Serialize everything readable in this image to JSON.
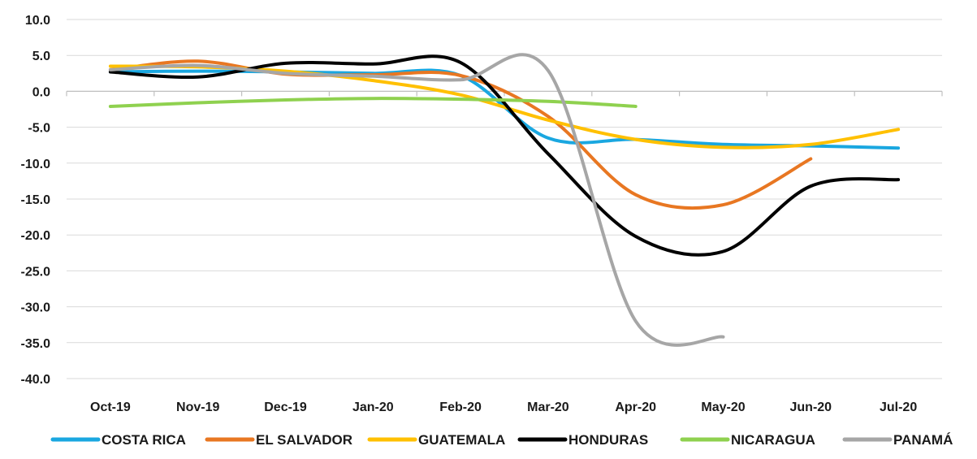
{
  "chart_data": {
    "type": "line",
    "title": "",
    "xlabel": "",
    "ylabel": "",
    "categories": [
      "Oct-19",
      "Nov-19",
      "Dec-19",
      "Jan-20",
      "Feb-20",
      "Mar-20",
      "Apr-20",
      "May-20",
      "Jun-20",
      "Jul-20"
    ],
    "ylim": [
      -40,
      10
    ],
    "y_ticks": [
      "10.0",
      "5.0",
      "0.0",
      "-5.0",
      "-10.0",
      "-15.0",
      "-20.0",
      "-25.0",
      "-30.0",
      "-35.0",
      "-40.0"
    ],
    "grid": true,
    "smooth": true,
    "legend_position": "bottom",
    "series": [
      {
        "name": "COSTA RICA",
        "color": "#1aa7e0",
        "values": [
          2.7,
          2.8,
          2.7,
          2.5,
          2.2,
          -6.5,
          -6.7,
          -7.4,
          -7.6,
          -7.9
        ]
      },
      {
        "name": "EL SALVADOR",
        "color": "#e87722",
        "values": [
          3.0,
          4.2,
          2.4,
          2.3,
          2.2,
          -3.5,
          -14.4,
          -15.8,
          -9.4,
          null
        ]
      },
      {
        "name": "GUATEMALA",
        "color": "#ffc000",
        "values": [
          3.5,
          3.4,
          2.8,
          1.5,
          -0.5,
          -4.0,
          -6.7,
          -7.8,
          -7.4,
          -5.3
        ]
      },
      {
        "name": "HONDURAS",
        "color": "#000000",
        "values": [
          2.7,
          2.0,
          3.9,
          3.8,
          4.0,
          -8.7,
          -20.2,
          -22.3,
          -13.2,
          -12.3
        ]
      },
      {
        "name": "NICARAGUA",
        "color": "#8fd14f",
        "values": [
          -2.1,
          -1.6,
          -1.2,
          -1.0,
          -1.1,
          -1.4,
          -2.1,
          null,
          null,
          null
        ]
      },
      {
        "name": "PANAMÁ",
        "color": "#a6a6a6",
        "values": [
          3.0,
          3.6,
          2.5,
          2.1,
          1.6,
          2.9,
          -32.0,
          -34.2,
          null,
          null
        ]
      }
    ]
  }
}
